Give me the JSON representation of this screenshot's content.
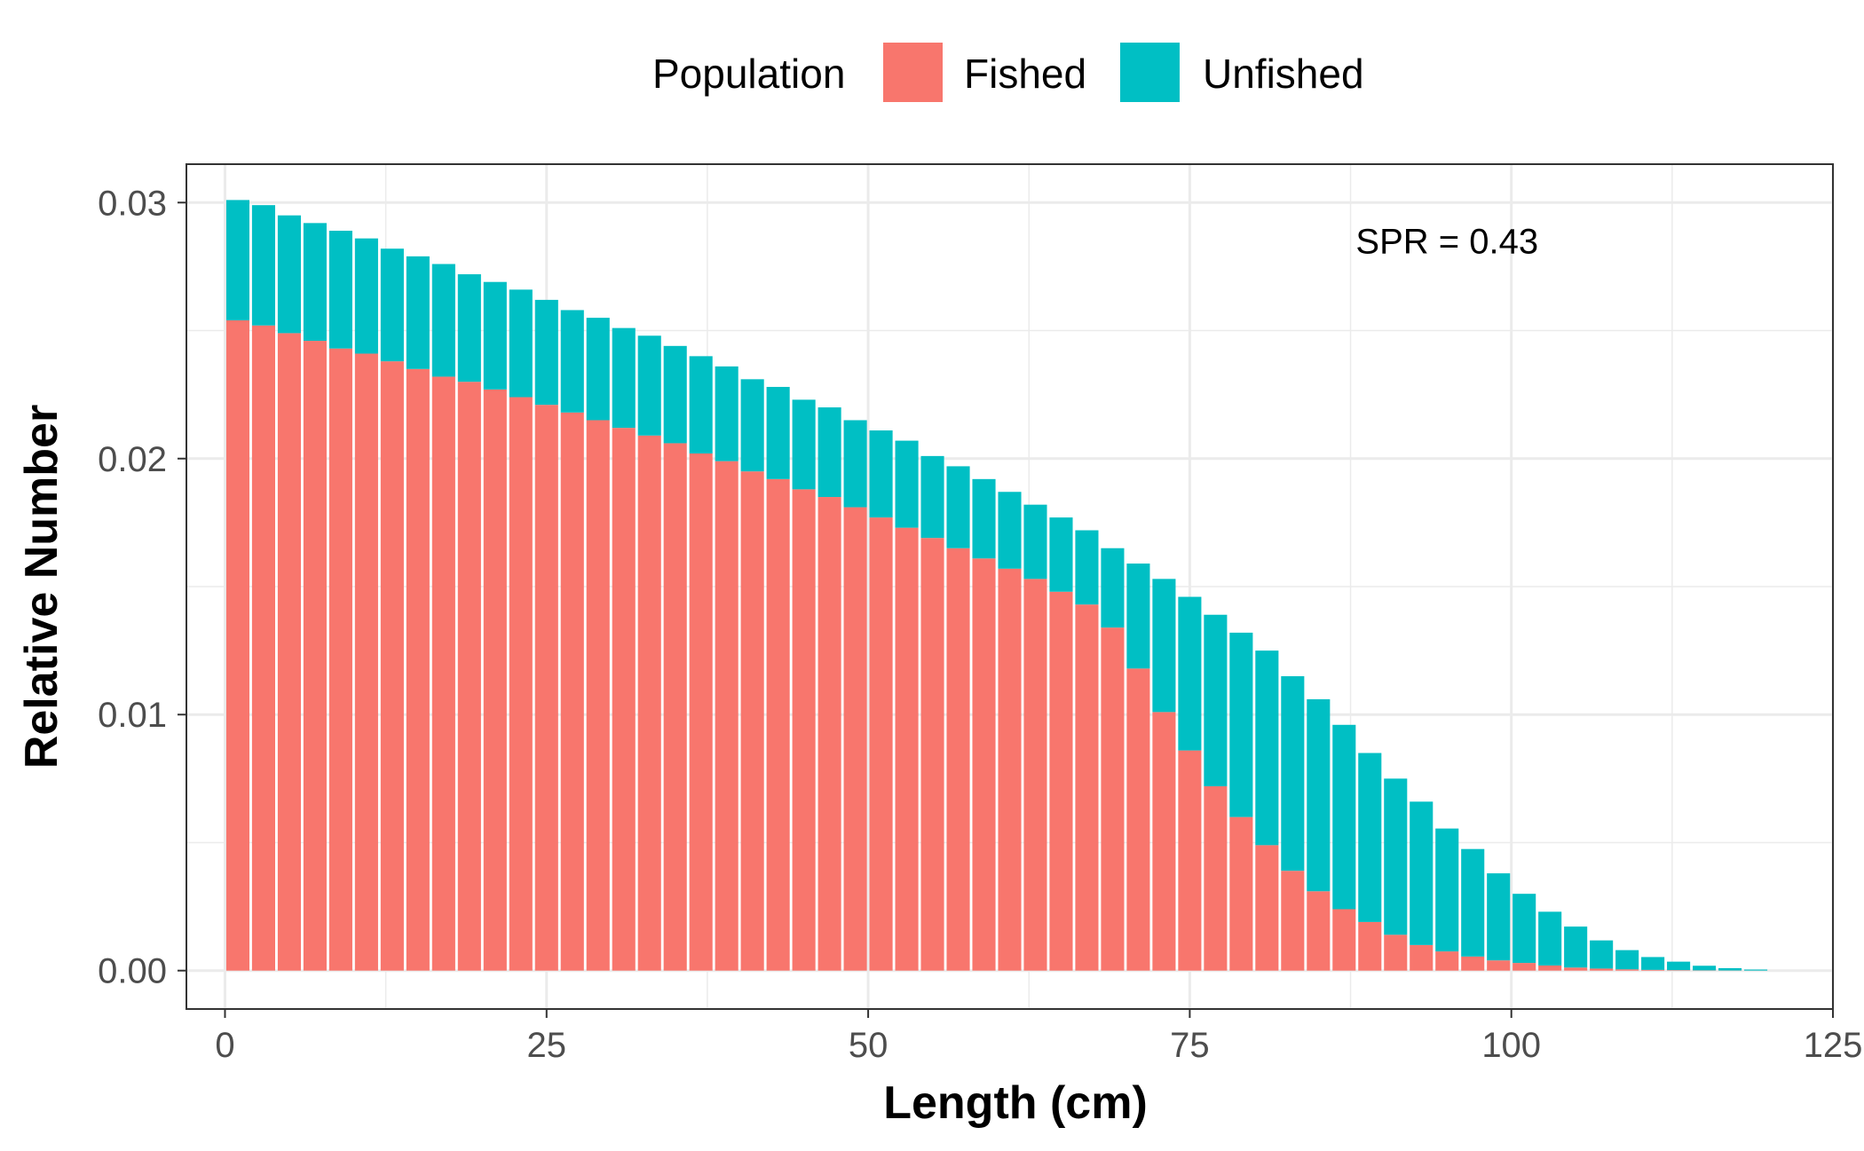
{
  "chart_data": {
    "type": "bar",
    "stacked": true,
    "grid": true,
    "legend_placement": "top",
    "legend": {
      "title": "Population",
      "entries": [
        {
          "name": "Fished",
          "color": "#F8766D"
        },
        {
          "name": "Unfished",
          "color": "#00BFC4"
        }
      ]
    },
    "xlabel": "Length (cm)",
    "ylabel": "Relative Number",
    "xlim": [
      -3,
      125
    ],
    "ylim": [
      -0.0015,
      0.0315
    ],
    "x_ticks": [
      0,
      25,
      50,
      75,
      100,
      125
    ],
    "x_tick_labels": [
      "0",
      "25",
      "50",
      "75",
      "100",
      "125"
    ],
    "y_ticks": [
      0.0,
      0.01,
      0.02,
      0.03
    ],
    "y_tick_labels": [
      "0.00",
      "0.01",
      "0.02",
      "0.03"
    ],
    "annotation": {
      "text": "SPR = 0.43",
      "x": 95,
      "y": 0.0285
    },
    "bar_width": 1.8,
    "x": [
      1,
      3,
      5,
      7,
      9,
      11,
      13,
      15,
      17,
      19,
      21,
      23,
      25,
      27,
      29,
      31,
      33,
      35,
      37,
      39,
      41,
      43,
      45,
      47,
      49,
      51,
      53,
      55,
      57,
      59,
      61,
      63,
      65,
      67,
      69,
      71,
      73,
      75,
      77,
      79,
      81,
      83,
      85,
      87,
      89,
      91,
      93,
      95,
      97,
      99,
      101,
      103,
      105,
      107,
      109,
      111,
      113,
      115,
      117,
      119
    ],
    "series": [
      {
        "name": "Fished",
        "values": [
          0.0254,
          0.0252,
          0.0249,
          0.0246,
          0.0243,
          0.0241,
          0.0238,
          0.0235,
          0.0232,
          0.023,
          0.0227,
          0.0224,
          0.0221,
          0.0218,
          0.0215,
          0.0212,
          0.0209,
          0.0206,
          0.0202,
          0.0199,
          0.0195,
          0.0192,
          0.0188,
          0.0185,
          0.0181,
          0.0177,
          0.0173,
          0.0169,
          0.0165,
          0.0161,
          0.0157,
          0.0153,
          0.0148,
          0.0143,
          0.0134,
          0.0118,
          0.0101,
          0.0086,
          0.0072,
          0.006,
          0.0049,
          0.0039,
          0.0031,
          0.0024,
          0.0019,
          0.0014,
          0.001,
          0.00075,
          0.00055,
          0.0004,
          0.0003,
          0.0002,
          0.00012,
          8e-05,
          5e-05,
          3e-05,
          2e-05,
          1e-05,
          5e-06,
          2e-06
        ]
      },
      {
        "name": "Unfished",
        "values": [
          0.0047,
          0.0047,
          0.0046,
          0.0046,
          0.0046,
          0.0045,
          0.0044,
          0.0044,
          0.0044,
          0.0042,
          0.0042,
          0.0042,
          0.0041,
          0.004,
          0.004,
          0.0039,
          0.0039,
          0.0038,
          0.0038,
          0.0037,
          0.0036,
          0.0036,
          0.0035,
          0.0035,
          0.0034,
          0.0034,
          0.0034,
          0.0032,
          0.0032,
          0.0031,
          0.003,
          0.0029,
          0.0029,
          0.0029,
          0.0031,
          0.0041,
          0.0052,
          0.006,
          0.0067,
          0.0072,
          0.0076,
          0.0076,
          0.0075,
          0.0072,
          0.0066,
          0.0061,
          0.0056,
          0.0048,
          0.0042,
          0.0034,
          0.0027,
          0.0021,
          0.0016,
          0.0011,
          0.00075,
          0.0005,
          0.00033,
          0.00018,
          9e-05,
          4e-05
        ]
      }
    ]
  }
}
